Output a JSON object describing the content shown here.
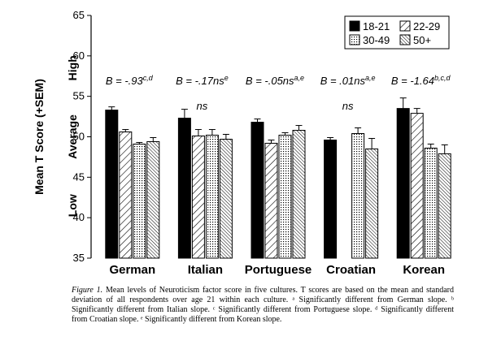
{
  "chart_data": {
    "type": "bar",
    "title": "",
    "ylabel": "Mean T Score (+SEM)",
    "ylim": [
      35,
      65
    ],
    "yticks": [
      35,
      40,
      45,
      50,
      55,
      60,
      65
    ],
    "band_labels": [
      "Low",
      "Average",
      "High"
    ],
    "categories": [
      "German",
      "Italian",
      "Portuguese",
      "Croatian",
      "Korean"
    ],
    "legend_position": "top-right",
    "series": [
      {
        "name": "18-21",
        "pattern": "solid-black",
        "values": [
          53.3,
          52.3,
          51.8,
          49.6,
          53.5
        ],
        "sem": [
          0.4,
          1.1,
          0.4,
          0.3,
          1.3
        ]
      },
      {
        "name": "22-29",
        "pattern": "wide-hatch",
        "values": [
          50.6,
          50.1,
          49.2,
          null,
          52.9
        ],
        "sem": [
          0.3,
          0.8,
          0.4,
          null,
          0.6
        ]
      },
      {
        "name": "30-49",
        "pattern": "dotted",
        "values": [
          49.1,
          50.2,
          50.2,
          50.4,
          48.6
        ],
        "sem": [
          0.2,
          0.7,
          0.3,
          0.7,
          0.5
        ]
      },
      {
        "name": "50+",
        "pattern": "dense-hatch",
        "values": [
          49.4,
          49.7,
          50.8,
          48.5,
          47.9
        ],
        "sem": [
          0.5,
          0.6,
          0.6,
          1.3,
          1.1
        ]
      }
    ],
    "annotations": [
      {
        "main": "B = -.93",
        "sup": "c,d",
        "extra": ""
      },
      {
        "main": "B = -.17ns",
        "sup": "e",
        "extra": "ns"
      },
      {
        "main": "B = -.05ns",
        "sup": "a,e",
        "extra": ""
      },
      {
        "main": "B = .01ns",
        "sup": "a,e",
        "extra": "ns"
      },
      {
        "main": "B = -1.64",
        "sup": "b,c,d",
        "extra": ""
      }
    ]
  },
  "caption": {
    "label": "Figure 1.",
    "text": "Mean levels of Neuroticism factor score in five cultures. T scores are based on the mean and standard deviation of all respondents over age 21 within each culture. ᵃ Significantly different from German slope. ᵇ Significantly different from Italian slope. ᶜ Significantly different from Portuguese slope. ᵈ Significantly different from Croatian slope. ᵉ Significantly different from Korean slope."
  }
}
